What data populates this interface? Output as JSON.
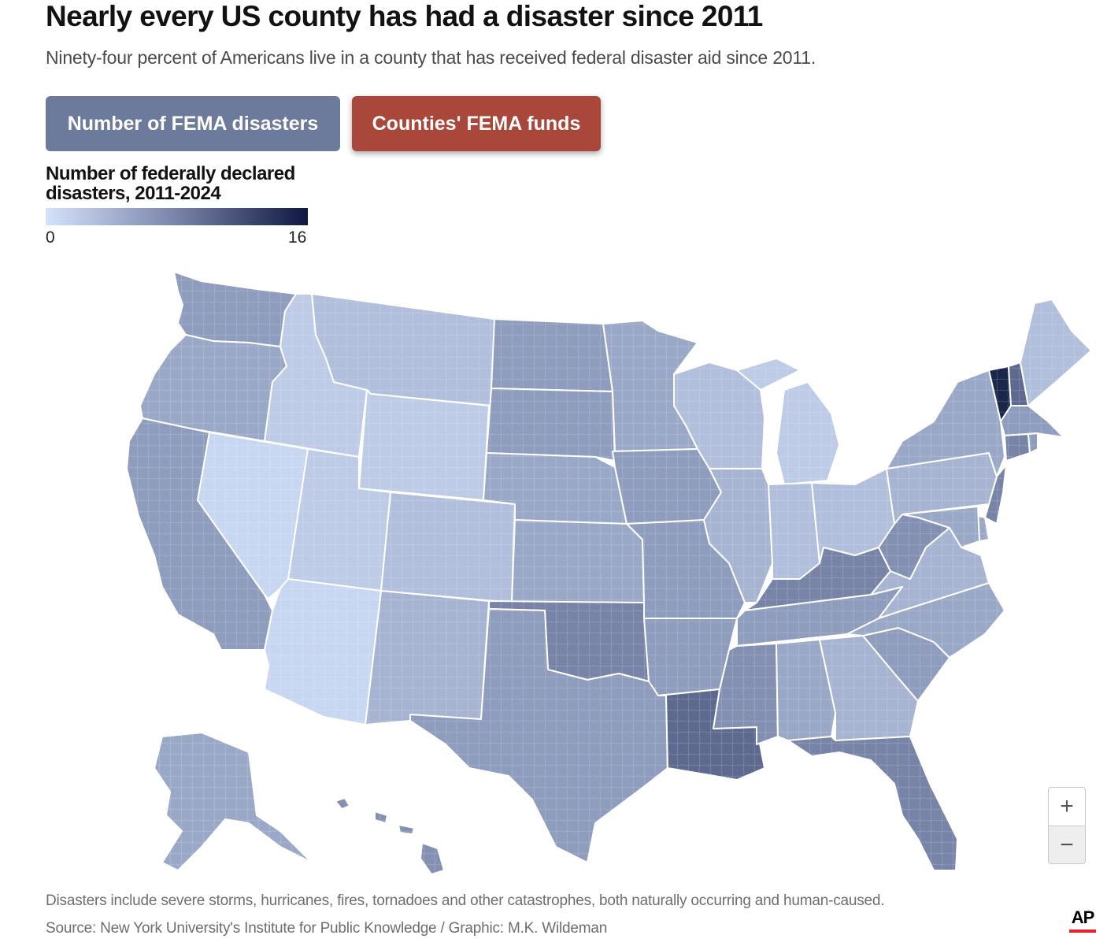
{
  "header": {
    "title": "Nearly every US county has had a disaster since 2011",
    "subtitle": "Ninety-four percent of Americans live in a county that has received federal disaster aid since 2011."
  },
  "toggle": {
    "disasters_label": "Number of FEMA disasters",
    "funds_label": "Counties' FEMA funds",
    "active": "Number of FEMA disasters"
  },
  "legend": {
    "title": "Number of federally declared disasters, 2011-2024",
    "min": "0",
    "max": "16",
    "color_low": "#d4e3fb",
    "color_mid": "#7784a8",
    "color_high": "#0e1840"
  },
  "zoom": {
    "in_icon": "plus-icon",
    "out_icon": "minus-icon"
  },
  "footer": {
    "note": "Disasters include severe storms, hurricanes, fires, tornadoes and other catastrophes, both naturally occurring and human-caused.",
    "source": "Source: New York University's Institute for Public Knowledge / Graphic: M.K. Wildeman",
    "logo": "AP"
  },
  "colors": {
    "disasters_button": "#6c7a9c",
    "funds_button": "#a9473a",
    "state_border": "#ffffff",
    "ap_red": "#e8202a"
  },
  "map_data": {
    "type": "choropleth",
    "scale": [
      0,
      16
    ],
    "regions": [
      {
        "name": "Washington",
        "level": 6
      },
      {
        "name": "Oregon",
        "level": 5
      },
      {
        "name": "California",
        "level": 6
      },
      {
        "name": "Nevada",
        "level": 1
      },
      {
        "name": "Idaho",
        "level": 2
      },
      {
        "name": "Montana",
        "level": 3
      },
      {
        "name": "Wyoming",
        "level": 2
      },
      {
        "name": "Utah",
        "level": 2
      },
      {
        "name": "Arizona",
        "level": 1
      },
      {
        "name": "Colorado",
        "level": 3
      },
      {
        "name": "New Mexico",
        "level": 4
      },
      {
        "name": "North Dakota",
        "level": 6
      },
      {
        "name": "South Dakota",
        "level": 6
      },
      {
        "name": "Nebraska",
        "level": 5
      },
      {
        "name": "Kansas",
        "level": 5
      },
      {
        "name": "Oklahoma",
        "level": 8
      },
      {
        "name": "Texas",
        "level": 6
      },
      {
        "name": "Minnesota",
        "level": 5
      },
      {
        "name": "Iowa",
        "level": 6
      },
      {
        "name": "Missouri",
        "level": 6
      },
      {
        "name": "Arkansas",
        "level": 6
      },
      {
        "name": "Louisiana",
        "level": 10
      },
      {
        "name": "Wisconsin",
        "level": 3
      },
      {
        "name": "Illinois",
        "level": 4
      },
      {
        "name": "Michigan",
        "level": 2
      },
      {
        "name": "Indiana",
        "level": 3
      },
      {
        "name": "Ohio",
        "level": 3
      },
      {
        "name": "Kentucky",
        "level": 8
      },
      {
        "name": "Tennessee",
        "level": 6
      },
      {
        "name": "Mississippi",
        "level": 7
      },
      {
        "name": "Alabama",
        "level": 5
      },
      {
        "name": "Georgia",
        "level": 4
      },
      {
        "name": "Florida",
        "level": 8
      },
      {
        "name": "South Carolina",
        "level": 6
      },
      {
        "name": "North Carolina",
        "level": 5
      },
      {
        "name": "Virginia",
        "level": 4
      },
      {
        "name": "West Virginia",
        "level": 7
      },
      {
        "name": "Pennsylvania",
        "level": 4
      },
      {
        "name": "New York",
        "level": 5
      },
      {
        "name": "Vermont",
        "level": 15
      },
      {
        "name": "New Hampshire",
        "level": 10
      },
      {
        "name": "Maine",
        "level": 3
      },
      {
        "name": "Massachusetts",
        "level": 6
      },
      {
        "name": "Connecticut",
        "level": 8
      },
      {
        "name": "Rhode Island",
        "level": 6
      },
      {
        "name": "New Jersey",
        "level": 8
      },
      {
        "name": "Delaware",
        "level": 5
      },
      {
        "name": "Maryland",
        "level": 5
      },
      {
        "name": "Alaska",
        "level": 5
      },
      {
        "name": "Hawaii",
        "level": 7
      }
    ]
  }
}
